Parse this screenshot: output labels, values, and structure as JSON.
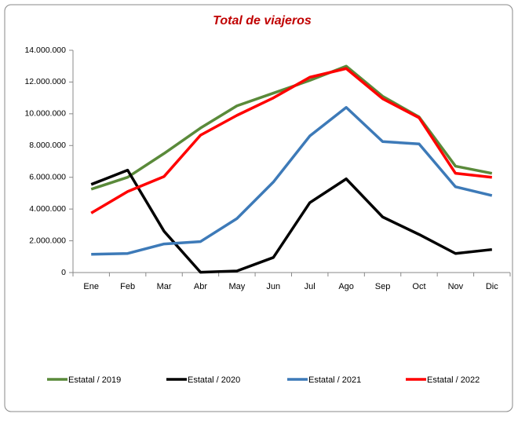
{
  "chart_data": {
    "type": "line",
    "title": "Total de viajeros",
    "categories": [
      "Ene",
      "Feb",
      "Mar",
      "Abr",
      "May",
      "Jun",
      "Jul",
      "Ago",
      "Sep",
      "Oct",
      "Nov",
      "Dic"
    ],
    "series": [
      {
        "name": "Estatal / 2019",
        "color": "#5a8a3a",
        "values": [
          5250000,
          6000000,
          7500000,
          9100000,
          10500000,
          11300000,
          12100000,
          13000000,
          11100000,
          9800000,
          6700000,
          6250000
        ]
      },
      {
        "name": "Estatal / 2020",
        "color": "#000000",
        "values": [
          5550000,
          6450000,
          2600000,
          20000,
          100000,
          950000,
          4400000,
          5900000,
          3500000,
          2400000,
          1200000,
          1450000
        ]
      },
      {
        "name": "Estatal / 2021",
        "color": "#3d7ab8",
        "values": [
          1150000,
          1200000,
          1800000,
          1950000,
          3400000,
          5700000,
          8600000,
          10400000,
          8250000,
          8100000,
          5400000,
          4850000
        ]
      },
      {
        "name": "Estatal / 2022",
        "color": "#ff0000",
        "values": [
          3750000,
          5100000,
          6050000,
          8650000,
          9900000,
          11000000,
          12300000,
          12850000,
          10950000,
          9750000,
          6250000,
          6000000
        ]
      }
    ],
    "ylim": [
      0,
      14000000
    ],
    "yticks": [
      0,
      {
        "value": 2000000,
        "label": "2.000.000"
      },
      {
        "value": 4000000,
        "label": "4.000.000"
      },
      {
        "value": 6000000,
        "label": "6.000.000"
      },
      {
        "value": 8000000,
        "label": "8.000.000"
      },
      {
        "value": 10000000,
        "label": "10.000.000"
      },
      {
        "value": 12000000,
        "label": "12.000.000"
      },
      {
        "value": 14000000,
        "label": "14.000.000"
      }
    ],
    "grid": false,
    "legend": "bottom"
  }
}
